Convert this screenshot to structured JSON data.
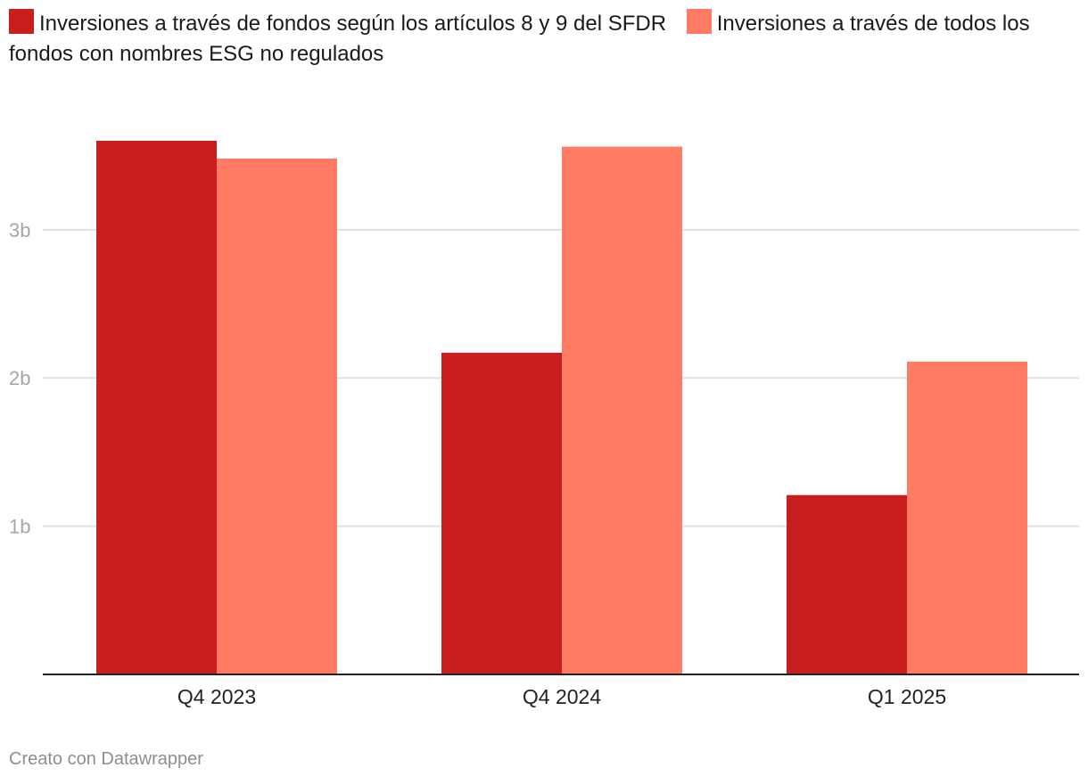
{
  "legend": [
    {
      "label": "Inversiones a través de fondos según los artículos 8 y 9 del SFDR",
      "color": "#c81e1e"
    },
    {
      "label": "Inversiones a través de todos los fondos con nombres ESG no regulados",
      "color": "#ff7b64"
    }
  ],
  "footer": {
    "credit": "Creato con Datawrapper"
  },
  "chart_data": {
    "type": "bar",
    "title": "",
    "xlabel": "",
    "ylabel": "",
    "categories": [
      "Q4 2023",
      "Q4 2024",
      "Q1 2025"
    ],
    "series": [
      {
        "name": "Inversiones a través de fondos según los artículos 8 y 9 del SFDR",
        "color": "#c81e1e",
        "values": [
          3.6,
          2.17,
          1.21
        ]
      },
      {
        "name": "Inversiones a través de todos los fondos con nombres ESG no regulados",
        "color": "#ff7b64",
        "values": [
          3.48,
          3.56,
          2.11
        ]
      }
    ],
    "ylim": [
      0,
      3.6
    ],
    "yticks": [
      {
        "value": 1,
        "label": "1b"
      },
      {
        "value": 2,
        "label": "2b"
      },
      {
        "value": 3,
        "label": "3b"
      }
    ],
    "grid": true,
    "legend_position": "top-left"
  }
}
